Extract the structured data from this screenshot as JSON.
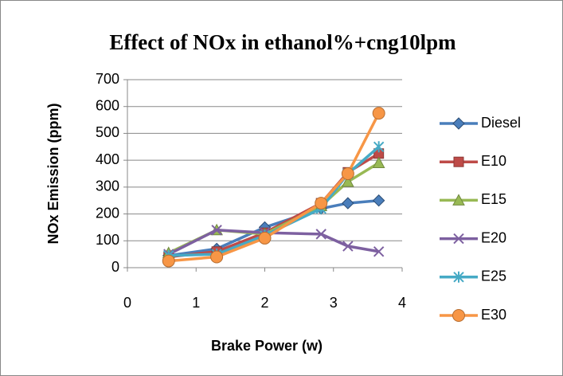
{
  "chart_data": {
    "type": "line",
    "title": "Effect of NOx in ethanol%+cng10lpm",
    "xlabel": "Brake Power (w)",
    "ylabel": "NOx Emission (ppm)",
    "x": [
      0.6,
      1.3,
      2.0,
      2.82,
      3.21,
      3.66
    ],
    "xlim": [
      0,
      4
    ],
    "xticks": [
      0,
      1,
      2,
      3,
      4
    ],
    "ylim": [
      0,
      700
    ],
    "yticks": [
      0,
      100,
      200,
      300,
      400,
      500,
      600,
      700
    ],
    "grid": true,
    "legend": "right",
    "series": [
      {
        "name": "Diesel",
        "color": "#4a7ebb",
        "marker": "diamond",
        "values": [
          45,
          70,
          150,
          220,
          240,
          250
        ]
      },
      {
        "name": "E10",
        "color": "#be4b48",
        "marker": "square",
        "values": [
          40,
          60,
          130,
          240,
          355,
          425
        ]
      },
      {
        "name": "E15",
        "color": "#98b954",
        "marker": "triangle",
        "values": [
          55,
          140,
          125,
          230,
          320,
          390
        ]
      },
      {
        "name": "E20",
        "color": "#7d60a0",
        "marker": "cross",
        "values": [
          50,
          140,
          130,
          125,
          80,
          60
        ]
      },
      {
        "name": "E25",
        "color": "#46aac5",
        "marker": "star",
        "values": [
          45,
          50,
          120,
          220,
          350,
          450
        ]
      },
      {
        "name": "E30",
        "color": "#f79646",
        "marker": "circle",
        "values": [
          25,
          40,
          110,
          240,
          350,
          575
        ]
      }
    ]
  }
}
